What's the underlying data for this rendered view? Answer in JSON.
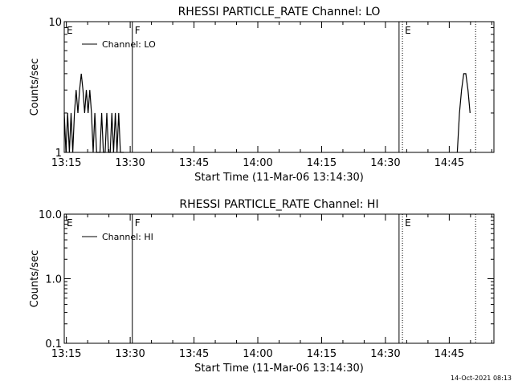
{
  "footer": {
    "timestamp": "14-Oct-2021 08:13"
  },
  "chart_data": [
    {
      "type": "line",
      "title": "RHESSI PARTICLE_RATE Channel: LO",
      "xlabel": "Start Time (11-Mar-06 13:14:30)",
      "ylabel": "Counts/sec",
      "x_unit": "minutes after 13:14:30",
      "xlim": [
        0,
        101
      ],
      "ylim": [
        1,
        10
      ],
      "yscale": "log",
      "x_ticks": [
        "13:15",
        "13:30",
        "13:45",
        "14:00",
        "14:15",
        "14:30",
        "14:45"
      ],
      "x_tick_values": [
        0.5,
        15.5,
        30.5,
        45.5,
        60.5,
        75.5,
        90.5
      ],
      "y_ticks": [
        "1",
        "10"
      ],
      "y_tick_values": [
        1,
        10
      ],
      "legend": {
        "position": "top-left"
      },
      "series": [
        {
          "name": "Channel: LO",
          "color": "#000000",
          "segments": [
            {
              "x": [
                0,
                0.4,
                0.8,
                1.2,
                1.6,
                2.0,
                2.4,
                2.8,
                3.2,
                3.6,
                4.0,
                4.4,
                4.8,
                5.2,
                5.6,
                6.0,
                6.4,
                6.8,
                7.2,
                7.6,
                8.0,
                8.4,
                8.8,
                9.2,
                9.6,
                10.0,
                10.4,
                10.8,
                11.2,
                11.6,
                12.0,
                12.4,
                12.8,
                13.2,
                13.6,
                14.0
              ],
              "y": [
                2,
                1,
                2,
                1,
                2,
                1,
                2,
                3,
                2,
                3,
                4,
                3,
                2,
                3,
                2,
                3,
                2,
                1,
                2,
                1,
                1,
                1,
                2,
                1,
                1,
                2,
                1,
                1,
                2,
                1,
                2,
                1,
                2,
                1,
                1,
                1
              ]
            },
            {
              "x": [
                92.4,
                92.9,
                93.4,
                93.9,
                94.4,
                94.9,
                95.4
              ],
              "y": [
                1,
                2,
                3,
                4,
                4,
                3,
                2
              ]
            }
          ]
        }
      ],
      "markers": [
        {
          "label": "E",
          "x": 0,
          "style": "dotted"
        },
        {
          "label": "F",
          "x": 16.0,
          "style": "solid"
        },
        {
          "label": "",
          "x": 78.7,
          "style": "solid"
        },
        {
          "label": "E",
          "x": 79.5,
          "style": "dotted"
        },
        {
          "label": "",
          "x": 96.7,
          "style": "dotted"
        }
      ]
    },
    {
      "type": "line",
      "title": "RHESSI PARTICLE_RATE Channel: HI",
      "xlabel": "Start Time (11-Mar-06 13:14:30)",
      "ylabel": "Counts/sec",
      "x_unit": "minutes after 13:14:30",
      "xlim": [
        0,
        101
      ],
      "ylim": [
        0.1,
        10
      ],
      "yscale": "log",
      "x_ticks": [
        "13:15",
        "13:30",
        "13:45",
        "14:00",
        "14:15",
        "14:30",
        "14:45"
      ],
      "x_tick_values": [
        0.5,
        15.5,
        30.5,
        45.5,
        60.5,
        75.5,
        90.5
      ],
      "y_ticks": [
        "0.1",
        "1.0",
        "10.0"
      ],
      "y_tick_values": [
        0.1,
        1,
        10
      ],
      "legend": {
        "position": "top-left"
      },
      "series": [
        {
          "name": "Channel: HI",
          "color": "#000000",
          "segments": []
        }
      ],
      "markers": [
        {
          "label": "E",
          "x": 0,
          "style": "dotted"
        },
        {
          "label": "F",
          "x": 16.0,
          "style": "solid"
        },
        {
          "label": "",
          "x": 78.7,
          "style": "solid"
        },
        {
          "label": "E",
          "x": 79.5,
          "style": "dotted"
        },
        {
          "label": "",
          "x": 96.7,
          "style": "dotted"
        }
      ]
    }
  ]
}
